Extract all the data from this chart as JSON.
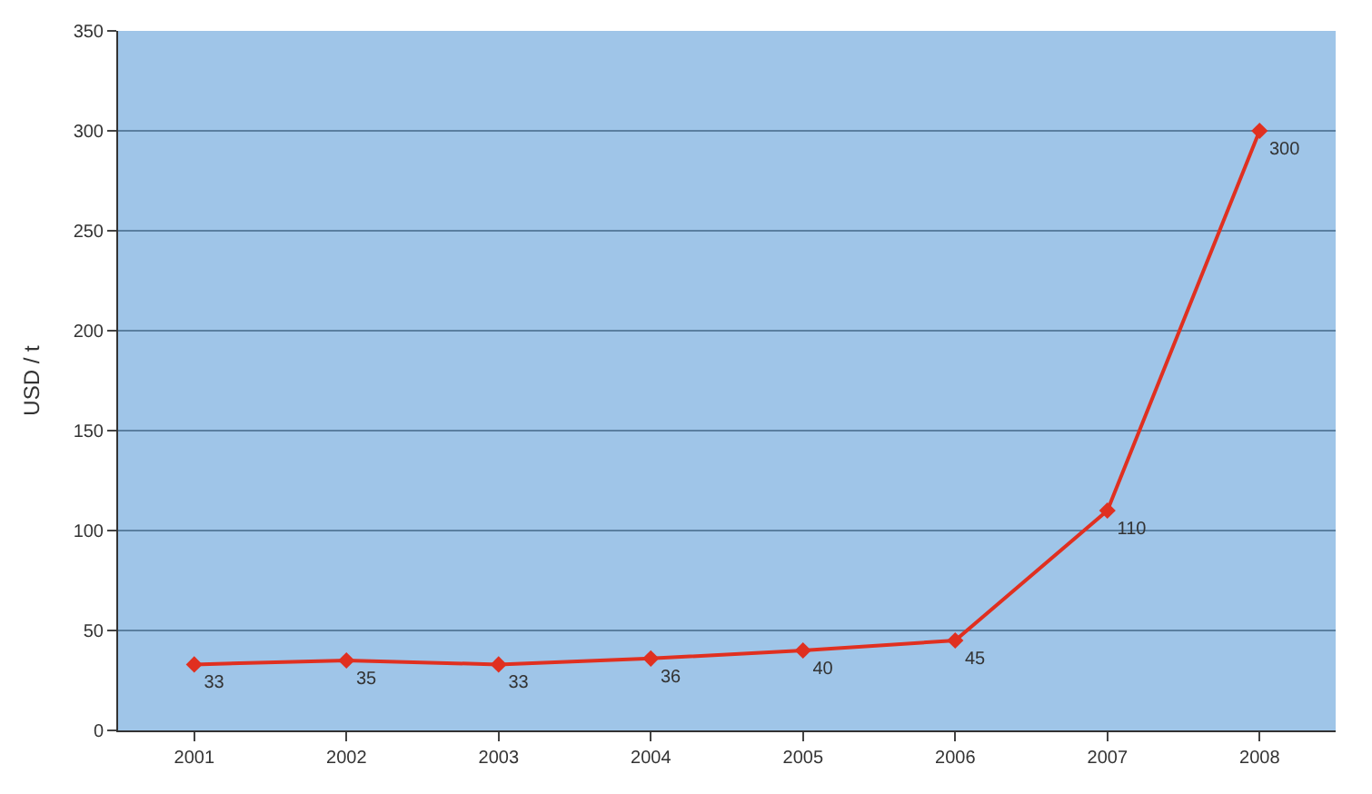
{
  "chart_data": {
    "type": "line",
    "ylabel": "USD / t",
    "categories": [
      "2001",
      "2002",
      "2003",
      "2004",
      "2005",
      "2006",
      "2007",
      "2008"
    ],
    "series": [
      {
        "color": "#e03020",
        "values": [
          33,
          35,
          33,
          36,
          40,
          45,
          110,
          300
        ]
      }
    ],
    "ylim": [
      0,
      350
    ],
    "yticks": [
      0,
      50,
      100,
      150,
      200,
      250,
      300,
      350
    ],
    "grid": "y",
    "marker": "diamond",
    "data_labels": true,
    "legend": false
  }
}
